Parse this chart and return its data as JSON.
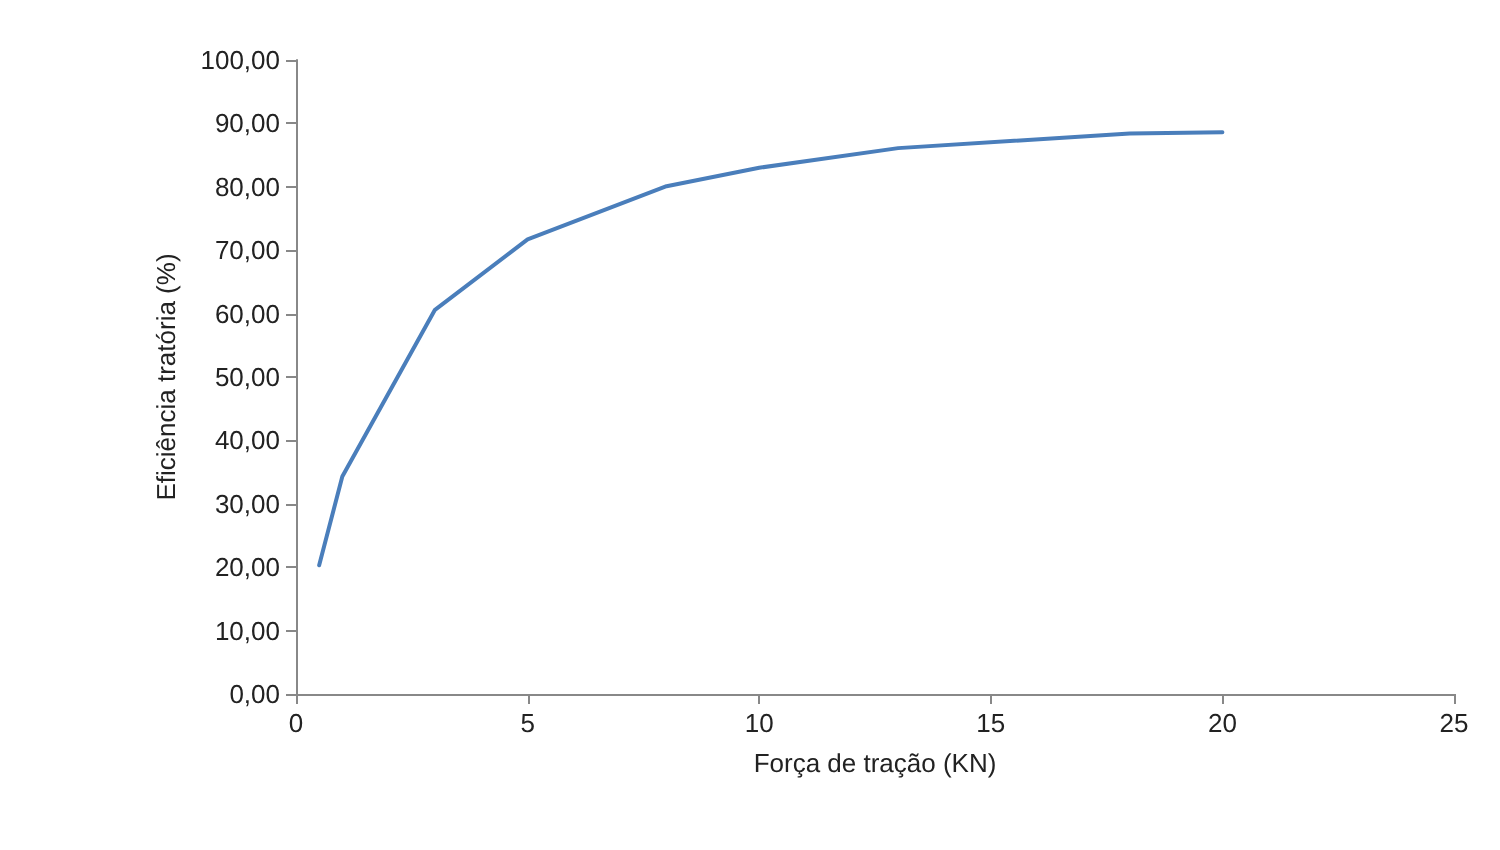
{
  "chart_data": {
    "type": "line",
    "xlabel": "Força de tração (KN)",
    "ylabel": "Eficiência tratória (%)",
    "x": [
      0.5,
      1,
      3,
      5,
      8,
      10,
      13,
      18,
      20
    ],
    "series": [
      {
        "color": "#4a7ebb",
        "values": [
          20.3,
          34.3,
          60.6,
          71.7,
          80.1,
          83.0,
          86.1,
          88.4,
          88.6
        ]
      }
    ],
    "xlim": [
      0,
      25
    ],
    "xticks": [
      0,
      5,
      10,
      15,
      20,
      25
    ],
    "ylim": [
      0,
      100
    ],
    "yticks": [
      {
        "value": 0,
        "label": "0,00"
      },
      {
        "value": 10,
        "label": "10,00"
      },
      {
        "value": 20,
        "label": "20,00"
      },
      {
        "value": 30,
        "label": "30,00"
      },
      {
        "value": 40,
        "label": "40,00"
      },
      {
        "value": 50,
        "label": "50,00"
      },
      {
        "value": 60,
        "label": "60,00"
      },
      {
        "value": 70,
        "label": "70,00"
      },
      {
        "value": 80,
        "label": "80,00"
      },
      {
        "value": 90,
        "label": "90,00"
      },
      {
        "value": 100,
        "label": "100,00"
      }
    ],
    "grid": false,
    "marker": "none",
    "line_style": "solid"
  }
}
